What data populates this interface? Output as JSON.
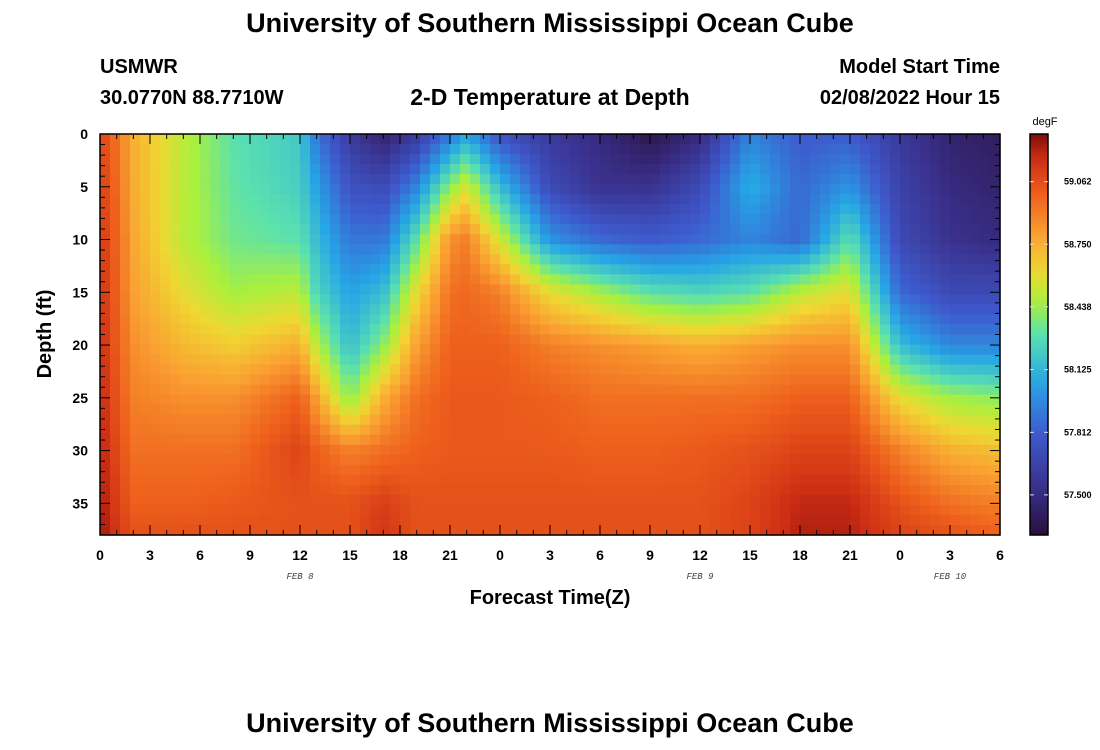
{
  "header": {
    "title": "University of Southern Mississippi Ocean Cube",
    "station": "USMWR",
    "coords": "30.0770N  88.7710W",
    "plot_title": "2-D Temperature at Depth",
    "model_label": "Model Start Time",
    "model_time": "02/08/2022 Hour 15"
  },
  "footer": {
    "title": "University of Southern Mississippi Ocean Cube"
  },
  "chart_data": {
    "type": "heatmap",
    "title": "2-D Temperature at Depth",
    "xlabel": "Forecast Time(Z)",
    "ylabel": "Depth (ft)",
    "x_ticks": [
      "0",
      "3",
      "6",
      "9",
      "12",
      "15",
      "18",
      "21",
      "0",
      "3",
      "6",
      "9",
      "12",
      "15",
      "18",
      "21",
      "0",
      "3",
      "6"
    ],
    "x_hours": [
      0,
      54
    ],
    "date_labels": [
      {
        "label": "FEB 8",
        "hour": 12
      },
      {
        "label": "FEB 9",
        "hour": 36
      },
      {
        "label": "FEB 10",
        "hour": 51
      }
    ],
    "y_ticks": [
      0,
      5,
      10,
      15,
      20,
      25,
      30,
      35
    ],
    "ylim": [
      0,
      38
    ],
    "colorbar": {
      "unit": "degF",
      "range": [
        57.3,
        59.3
      ],
      "ticks": [
        59.062,
        58.75,
        58.438,
        58.125,
        57.812,
        57.5
      ],
      "tick_labels": [
        "59.062",
        "58.750",
        "58.438",
        "58.125",
        "57.812",
        "57.500"
      ]
    },
    "profiles": {
      "hours": [
        0,
        1,
        2,
        5,
        8,
        12,
        13,
        15,
        17,
        19,
        21,
        22,
        24,
        27,
        30,
        33,
        36,
        39,
        42,
        45,
        48,
        51,
        54
      ],
      "depths": [
        0,
        5,
        10,
        15,
        20,
        25,
        30,
        35,
        38
      ],
      "temps_degF": [
        [
          59.1,
          59.12,
          59.14,
          59.16,
          59.18,
          59.2,
          59.22,
          59.24,
          59.26
        ],
        [
          58.95,
          58.97,
          58.99,
          59.0,
          59.02,
          59.04,
          59.08,
          59.12,
          59.15
        ],
        [
          58.75,
          58.76,
          58.78,
          58.8,
          58.85,
          58.9,
          58.95,
          59.0,
          59.05
        ],
        [
          58.5,
          58.5,
          58.5,
          58.6,
          58.72,
          58.85,
          58.95,
          59.0,
          59.05
        ],
        [
          58.3,
          58.32,
          58.35,
          58.45,
          58.65,
          58.85,
          58.95,
          59.02,
          59.05
        ],
        [
          58.2,
          58.22,
          58.3,
          58.5,
          58.75,
          59.0,
          59.1,
          59.05,
          59.05
        ],
        [
          57.9,
          58.05,
          58.15,
          58.25,
          58.5,
          58.8,
          59.0,
          59.05,
          59.05
        ],
        [
          57.6,
          57.75,
          57.9,
          58.05,
          58.15,
          58.4,
          58.9,
          59.05,
          59.05
        ],
        [
          57.45,
          57.7,
          57.9,
          58.15,
          58.4,
          58.75,
          58.95,
          59.12,
          59.15
        ],
        [
          57.6,
          57.95,
          58.3,
          58.6,
          58.8,
          58.95,
          59.0,
          59.05,
          59.05
        ],
        [
          57.9,
          58.4,
          58.85,
          58.95,
          59.0,
          59.02,
          59.02,
          59.05,
          59.05
        ],
        [
          58.05,
          58.55,
          58.9,
          58.97,
          59.0,
          59.02,
          59.02,
          59.05,
          59.05
        ],
        [
          57.75,
          58.15,
          58.55,
          58.9,
          59.0,
          59.02,
          59.02,
          59.05,
          59.05
        ],
        [
          57.6,
          57.7,
          58.0,
          58.6,
          58.9,
          59.0,
          59.02,
          59.05,
          59.05
        ],
        [
          57.5,
          57.55,
          57.85,
          58.45,
          58.85,
          58.95,
          59.0,
          59.05,
          59.05
        ],
        [
          57.35,
          57.55,
          57.8,
          58.3,
          58.8,
          58.95,
          59.0,
          59.05,
          59.05
        ],
        [
          57.5,
          57.7,
          57.85,
          58.25,
          58.75,
          58.95,
          59.02,
          59.05,
          59.05
        ],
        [
          57.95,
          58.1,
          57.95,
          58.3,
          58.8,
          58.95,
          59.05,
          59.1,
          59.1
        ],
        [
          57.8,
          57.85,
          57.85,
          58.5,
          58.85,
          59.0,
          59.1,
          59.2,
          59.22
        ],
        [
          57.8,
          58.0,
          58.3,
          58.6,
          58.85,
          59.0,
          59.1,
          59.2,
          59.22
        ],
        [
          57.6,
          57.65,
          57.7,
          57.85,
          58.15,
          58.6,
          58.9,
          59.05,
          59.1
        ],
        [
          57.45,
          57.5,
          57.55,
          57.7,
          57.95,
          58.45,
          58.75,
          58.95,
          59.05
        ],
        [
          57.4,
          57.45,
          57.5,
          57.7,
          57.95,
          58.4,
          58.7,
          58.9,
          59.0
        ]
      ]
    }
  }
}
